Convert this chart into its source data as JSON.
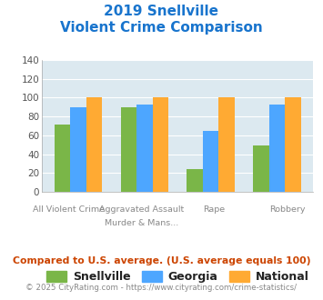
{
  "title_line1": "2019 Snellville",
  "title_line2": "Violent Crime Comparison",
  "title_color": "#1874cd",
  "top_labels": [
    "",
    "Aggravated Assault",
    "",
    ""
  ],
  "bottom_labels": [
    "All Violent Crime",
    "Murder & Mans...",
    "Rape",
    "Robbery"
  ],
  "snellville": [
    72,
    90,
    24,
    49
  ],
  "georgia": [
    90,
    93,
    65,
    93
  ],
  "national": [
    100,
    100,
    100,
    100
  ],
  "snellville_color": "#7ab648",
  "georgia_color": "#4da6ff",
  "national_color": "#ffaa33",
  "ylim": [
    0,
    140
  ],
  "yticks": [
    0,
    20,
    40,
    60,
    80,
    100,
    120,
    140
  ],
  "plot_bg": "#dce9f0",
  "footer_text": "Compared to U.S. average. (U.S. average equals 100)",
  "footer_color": "#cc4400",
  "copyright_text": "© 2025 CityRating.com - https://www.cityrating.com/crime-statistics/",
  "copyright_color": "#888888",
  "legend_labels": [
    "Snellville",
    "Georgia",
    "National"
  ]
}
